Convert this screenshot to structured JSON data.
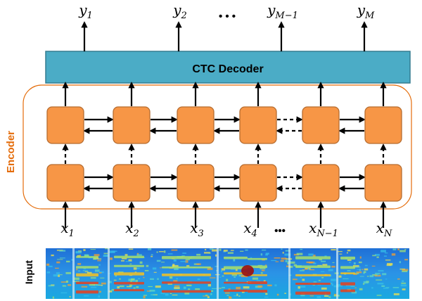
{
  "outputs": [
    {
      "base": "y",
      "sub": "1"
    },
    {
      "base": "y",
      "sub": "2"
    },
    {
      "base": "y",
      "sub": "M−1"
    },
    {
      "base": "y",
      "sub": "M"
    }
  ],
  "output_ellipsis": "• • •",
  "decoder_label": "CTC Decoder",
  "encoder_label": "Encoder",
  "inputs": [
    {
      "base": "x",
      "sub": "1"
    },
    {
      "base": "x",
      "sub": "2"
    },
    {
      "base": "x",
      "sub": "3"
    },
    {
      "base": "x",
      "sub": "4"
    },
    {
      "base": "x",
      "sub": "N−1"
    },
    {
      "base": "x",
      "sub": "N"
    }
  ],
  "input_ellipsis": "•••",
  "input_label": "Input",
  "colors": {
    "decoder_fill": "#4bacc6",
    "decoder_stroke": "#357d91",
    "cell_fill": "#f79646",
    "cell_stroke": "#b66d31",
    "encoder_border": "#e46c0a",
    "encoder_text": "#e46c0a",
    "arrow": "#000000"
  }
}
